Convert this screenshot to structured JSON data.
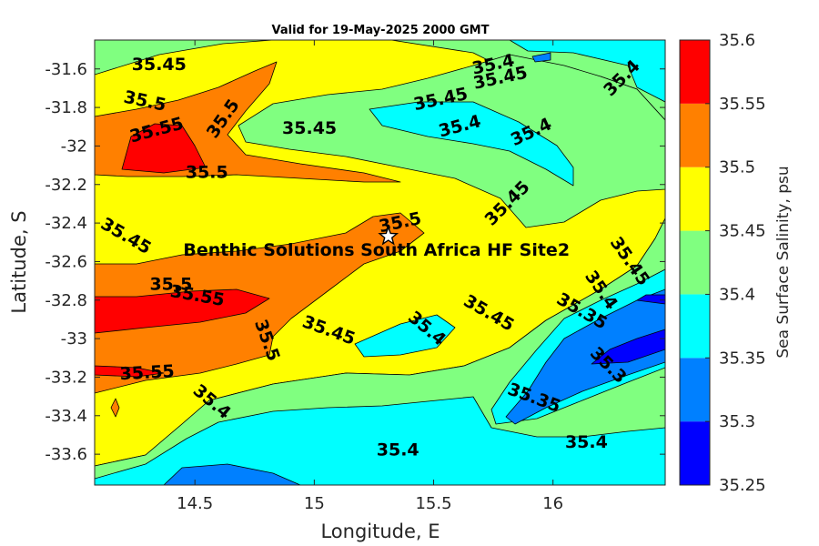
{
  "chart_data": {
    "type": "heatmap",
    "subtype": "filled-contour",
    "title": "Valid for 19-May-2025 2000 GMT",
    "xlabel": "Longitude, E",
    "ylabel": "Latitude, S",
    "colorbar_label": "Sea Surface Salinity, psu",
    "xlim": [
      14.08,
      16.47
    ],
    "ylim": [
      -33.76,
      -31.45
    ],
    "x_ticks": [
      14.5,
      15,
      15.5,
      16
    ],
    "x_tick_labels": [
      "14.5",
      "15",
      "15.5",
      "16"
    ],
    "y_ticks": [
      -31.6,
      -31.8,
      -32,
      -32.2,
      -32.4,
      -32.6,
      -32.8,
      -33,
      -33.2,
      -33.4,
      -33.6
    ],
    "y_tick_labels": [
      "-31.6",
      "-31.8",
      "-32",
      "-32.2",
      "-32.4",
      "-32.6",
      "-32.8",
      "-33",
      "-33.2",
      "-33.4",
      "-33.6"
    ],
    "levels": [
      35.25,
      35.3,
      35.35,
      35.4,
      35.45,
      35.5,
      35.55,
      35.6
    ],
    "level_labels": [
      "35.25",
      "35.3",
      "35.35",
      "35.4",
      "35.45",
      "35.5",
      "35.55",
      "35.6"
    ],
    "level_colors": [
      "#0000ff",
      "#0080ff",
      "#00ffff",
      "#80ff80",
      "#ffff00",
      "#ff8000",
      "#ff0000"
    ],
    "site": {
      "name": "Benthic Solutions South Africa HF Site2",
      "lon": 15.31,
      "lat": -32.47
    },
    "contour_labels": [
      {
        "text": "35.45",
        "lon": 14.35,
        "lat": -31.58,
        "angle": 0
      },
      {
        "text": "35.4",
        "lon": 15.75,
        "lat": -31.58,
        "angle": 12
      },
      {
        "text": "35.45",
        "lon": 15.78,
        "lat": -31.65,
        "angle": 12
      },
      {
        "text": "35.4",
        "lon": 16.29,
        "lat": -31.65,
        "angle": 45
      },
      {
        "text": "35.5",
        "lon": 14.29,
        "lat": -31.77,
        "angle": -12
      },
      {
        "text": "35.45",
        "lon": 15.53,
        "lat": -31.76,
        "angle": 12
      },
      {
        "text": "35.5",
        "lon": 14.62,
        "lat": -31.86,
        "angle": 55
      },
      {
        "text": "35.55",
        "lon": 14.34,
        "lat": -31.92,
        "angle": 15
      },
      {
        "text": "35.45",
        "lon": 14.98,
        "lat": -31.91,
        "angle": 0
      },
      {
        "text": "35.4",
        "lon": 15.61,
        "lat": -31.9,
        "angle": 15
      },
      {
        "text": "35.4",
        "lon": 15.91,
        "lat": -31.93,
        "angle": 25
      },
      {
        "text": "35.5",
        "lon": 14.55,
        "lat": -32.14,
        "angle": 0
      },
      {
        "text": "35.45",
        "lon": 15.81,
        "lat": -32.3,
        "angle": 45
      },
      {
        "text": "35.45",
        "lon": 14.21,
        "lat": -32.47,
        "angle": -30
      },
      {
        "text": "35.5",
        "lon": 15.36,
        "lat": -32.4,
        "angle": 12
      },
      {
        "text": "35.45",
        "lon": 16.32,
        "lat": -32.6,
        "angle": -55
      },
      {
        "text": "35.4",
        "lon": 16.2,
        "lat": -32.75,
        "angle": -55
      },
      {
        "text": "35.35",
        "lon": 16.12,
        "lat": -32.86,
        "angle": -30
      },
      {
        "text": "35.5",
        "lon": 14.4,
        "lat": -32.72,
        "angle": 0
      },
      {
        "text": "35.55",
        "lon": 14.51,
        "lat": -32.78,
        "angle": -10
      },
      {
        "text": "35.45",
        "lon": 15.73,
        "lat": -32.87,
        "angle": -30
      },
      {
        "text": "35.4",
        "lon": 15.47,
        "lat": -32.95,
        "angle": -40
      },
      {
        "text": "35.45",
        "lon": 15.06,
        "lat": -32.96,
        "angle": -20
      },
      {
        "text": "35.5",
        "lon": 14.8,
        "lat": -33.01,
        "angle": -70
      },
      {
        "text": "35.3",
        "lon": 16.23,
        "lat": -33.14,
        "angle": -45
      },
      {
        "text": "35.55",
        "lon": 14.3,
        "lat": -33.18,
        "angle": 3
      },
      {
        "text": "35.35",
        "lon": 15.92,
        "lat": -33.31,
        "angle": -20
      },
      {
        "text": "35.4",
        "lon": 14.57,
        "lat": -33.33,
        "angle": -40
      },
      {
        "text": "35.4",
        "lon": 15.35,
        "lat": -33.58,
        "angle": 0
      },
      {
        "text": "35.4",
        "lon": 16.14,
        "lat": -33.54,
        "angle": 0
      }
    ]
  }
}
